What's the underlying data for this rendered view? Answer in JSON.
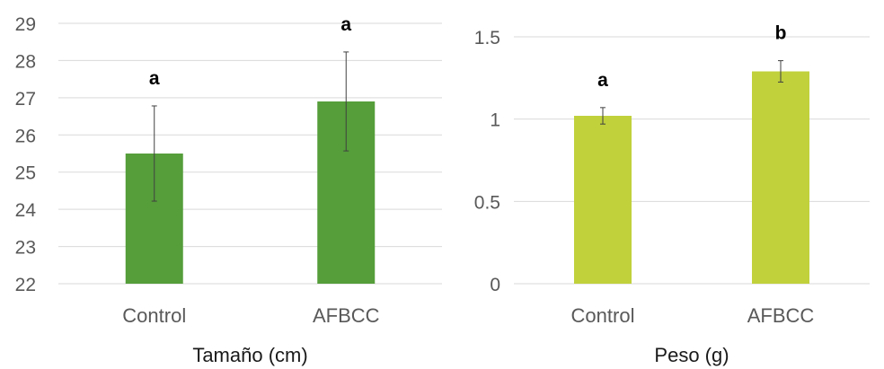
{
  "chart_data": [
    {
      "type": "bar",
      "xlabel": "Tamaño (cm)",
      "ylabel": "",
      "categories": [
        "Control",
        "AFBCC"
      ],
      "values": [
        25.5,
        26.9
      ],
      "errors": [
        1.28,
        1.33
      ],
      "significance_labels": [
        "a",
        "a"
      ],
      "ylim": [
        22,
        29
      ],
      "yticks": [
        "22",
        "23",
        "24",
        "25",
        "26",
        "27",
        "28",
        "29"
      ],
      "bar_color": "#559e3a",
      "grid": true,
      "legend": "none"
    },
    {
      "type": "bar",
      "xlabel": "Peso (g)",
      "ylabel": "",
      "categories": [
        "Control",
        "AFBCC"
      ],
      "values": [
        1.02,
        1.29
      ],
      "errors": [
        0.05,
        0.065
      ],
      "significance_labels": [
        "a",
        "b"
      ],
      "ylim": [
        0,
        1.5
      ],
      "yticks": [
        "0",
        "0.5",
        "1",
        "1.5"
      ],
      "bar_color": "#c0d13b",
      "grid": true,
      "legend": "none"
    }
  ]
}
